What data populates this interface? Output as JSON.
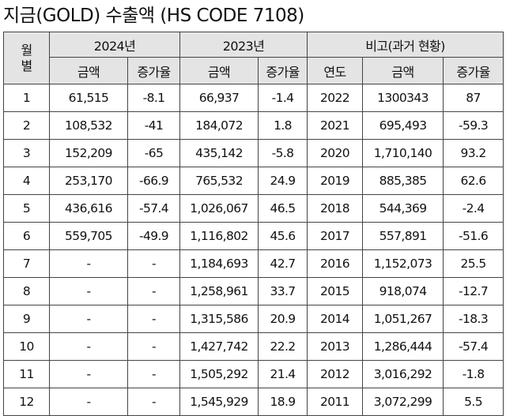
{
  "title": "지금(GOLD) 수출액 (HS CODE 7108)",
  "header": {
    "month": "월\n별",
    "year2024": "2024년",
    "year2023": "2023년",
    "compare": "비고(과거 현황)",
    "amount": "금액",
    "growth": "증가율",
    "year": "연도"
  },
  "rows": [
    {
      "month": "1",
      "a2024": "61,515",
      "g2024": "-8.1",
      "a2023": "66,937",
      "g2023": "-1.4",
      "year": "2022",
      "amount": "1300343",
      "growth": "87"
    },
    {
      "month": "2",
      "a2024": "108,532",
      "g2024": "-41",
      "a2023": "184,072",
      "g2023": "1.8",
      "year": "2021",
      "amount": "695,493",
      "growth": "-59.3"
    },
    {
      "month": "3",
      "a2024": "152,209",
      "g2024": "-65",
      "a2023": "435,142",
      "g2023": "-5.8",
      "year": "2020",
      "amount": "1,710,140",
      "growth": "93.2"
    },
    {
      "month": "4",
      "a2024": "253,170",
      "g2024": "-66.9",
      "a2023": "765,532",
      "g2023": "24.9",
      "year": "2019",
      "amount": "885,385",
      "growth": "62.6"
    },
    {
      "month": "5",
      "a2024": "436,616",
      "g2024": "-57.4",
      "a2023": "1,026,067",
      "g2023": "46.5",
      "year": "2018",
      "amount": "544,369",
      "growth": "-2.4"
    },
    {
      "month": "6",
      "a2024": "559,705",
      "g2024": "-49.9",
      "a2023": "1,116,802",
      "g2023": "45.6",
      "year": "2017",
      "amount": "557,891",
      "growth": "-51.6"
    },
    {
      "month": "7",
      "a2024": "-",
      "g2024": "-",
      "a2023": "1,184,693",
      "g2023": "42.7",
      "year": "2016",
      "amount": "1,152,073",
      "growth": "25.5"
    },
    {
      "month": "8",
      "a2024": "-",
      "g2024": "-",
      "a2023": "1,258,961",
      "g2023": "33.7",
      "year": "2015",
      "amount": "918,074",
      "growth": "-12.7"
    },
    {
      "month": "9",
      "a2024": "-",
      "g2024": "-",
      "a2023": "1,315,586",
      "g2023": "20.9",
      "year": "2014",
      "amount": "1,051,267",
      "growth": "-18.3"
    },
    {
      "month": "10",
      "a2024": "-",
      "g2024": "-",
      "a2023": "1,427,742",
      "g2023": "22.2",
      "year": "2013",
      "amount": "1,286,444",
      "growth": "-57.4"
    },
    {
      "month": "11",
      "a2024": "-",
      "g2024": "-",
      "a2023": "1,505,292",
      "g2023": "21.4",
      "year": "2012",
      "amount": "3,016,292",
      "growth": "-1.8"
    },
    {
      "month": "12",
      "a2024": "-",
      "g2024": "-",
      "a2023": "1,545,929",
      "g2023": "18.9",
      "year": "2011",
      "amount": "3,072,299",
      "growth": "5.5"
    }
  ]
}
